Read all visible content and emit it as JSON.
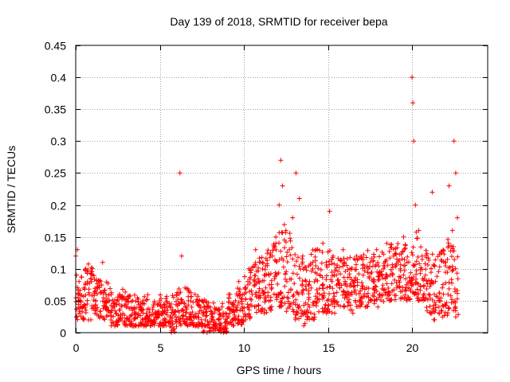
{
  "chart_data": {
    "type": "scatter",
    "title": "Day 139 of 2018, SRMTID for receiver bepa",
    "xlabel": "GPS time / hours",
    "ylabel": "SRMTID / TECUs",
    "xlim": [
      0,
      24.5
    ],
    "ylim": [
      0,
      0.45
    ],
    "xticks": [
      0,
      5,
      10,
      15,
      20
    ],
    "xtick_labels": [
      "0",
      "5",
      "10",
      "15",
      "20"
    ],
    "yticks": [
      0,
      0.05,
      0.1,
      0.15,
      0.2,
      0.25,
      0.3,
      0.35,
      0.4,
      0.45
    ],
    "ytick_labels": [
      "0",
      "0.05",
      "0.1",
      "0.15",
      "0.2",
      "0.25",
      "0.3",
      "0.35",
      "0.4",
      "0.45"
    ],
    "grid": true,
    "marker": "plus",
    "marker_color": "#ff0000",
    "series": [
      {
        "name": "SRMTID",
        "x": [
          0.0,
          0.05,
          0.1,
          0.15,
          0.2,
          0.3,
          0.4,
          0.5,
          0.6,
          0.8,
          1.0,
          1.2,
          1.4,
          1.6,
          1.8,
          2.0,
          2.2,
          2.4,
          2.6,
          2.8,
          3.0,
          3.2,
          3.4,
          3.6,
          3.8,
          4.0,
          4.2,
          4.4,
          4.6,
          4.8,
          5.0,
          5.2,
          5.4,
          5.6,
          5.8,
          6.0,
          6.2,
          6.3,
          6.5,
          6.7,
          6.9,
          7.1,
          7.3,
          7.5,
          7.7,
          7.9,
          8.1,
          8.3,
          8.5,
          8.7,
          8.9,
          9.1,
          9.3,
          9.5,
          9.7,
          9.9,
          10.1,
          10.3,
          10.5,
          10.7,
          10.9,
          11.1,
          11.3,
          11.5,
          11.7,
          11.9,
          12.1,
          12.2,
          12.3,
          12.5,
          12.7,
          12.9,
          13.1,
          13.3,
          13.5,
          13.7,
          13.9,
          14.1,
          14.3,
          14.5,
          14.7,
          14.9,
          15.1,
          15.3,
          15.5,
          15.7,
          15.9,
          16.1,
          16.3,
          16.5,
          16.7,
          16.9,
          17.1,
          17.3,
          17.5,
          17.7,
          17.9,
          18.1,
          18.3,
          18.5,
          18.7,
          18.9,
          19.1,
          19.3,
          19.5,
          19.7,
          19.9,
          20.0,
          20.05,
          20.1,
          20.2,
          20.4,
          20.6,
          20.8,
          21.0,
          21.2,
          21.4,
          21.6,
          21.8,
          22.0,
          22.2,
          22.4,
          22.5,
          22.6,
          22.7
        ],
        "y": [
          0.12,
          0.09,
          0.13,
          0.06,
          0.08,
          0.05,
          0.04,
          0.07,
          0.1,
          0.06,
          0.09,
          0.05,
          0.08,
          0.11,
          0.06,
          0.05,
          0.04,
          0.03,
          0.06,
          0.03,
          0.04,
          0.02,
          0.05,
          0.03,
          0.04,
          0.05,
          0.03,
          0.02,
          0.04,
          0.03,
          0.05,
          0.02,
          0.04,
          0.01,
          0.03,
          0.06,
          0.25,
          0.12,
          0.07,
          0.05,
          0.04,
          0.06,
          0.03,
          0.05,
          0.02,
          0.04,
          0.03,
          0.01,
          0.02,
          0.04,
          0.03,
          0.06,
          0.02,
          0.05,
          0.08,
          0.04,
          0.07,
          0.1,
          0.06,
          0.13,
          0.08,
          0.11,
          0.07,
          0.09,
          0.12,
          0.15,
          0.2,
          0.27,
          0.23,
          0.16,
          0.13,
          0.18,
          0.25,
          0.21,
          0.12,
          0.08,
          0.04,
          0.1,
          0.13,
          0.06,
          0.14,
          0.11,
          0.19,
          0.12,
          0.09,
          0.07,
          0.13,
          0.06,
          0.1,
          0.08,
          0.12,
          0.05,
          0.09,
          0.07,
          0.11,
          0.08,
          0.13,
          0.06,
          0.1,
          0.14,
          0.09,
          0.12,
          0.07,
          0.1,
          0.15,
          0.11,
          0.08,
          0.4,
          0.36,
          0.3,
          0.2,
          0.16,
          0.12,
          0.09,
          0.06,
          0.22,
          0.08,
          0.04,
          0.07,
          0.11,
          0.23,
          0.16,
          0.3,
          0.25,
          0.18
        ]
      }
    ],
    "density": {
      "step_hours": 0.25,
      "bands": [
        [
          0.02,
          0.1
        ],
        [
          0.02,
          0.09
        ],
        [
          0.03,
          0.1
        ],
        [
          0.02,
          0.11
        ],
        [
          0.03,
          0.09
        ],
        [
          0.02,
          0.09
        ],
        [
          0.02,
          0.08
        ],
        [
          0.02,
          0.08
        ],
        [
          0.01,
          0.07
        ],
        [
          0.01,
          0.06
        ],
        [
          0.01,
          0.06
        ],
        [
          0.01,
          0.07
        ],
        [
          0.01,
          0.06
        ],
        [
          0.01,
          0.06
        ],
        [
          0.01,
          0.06
        ],
        [
          0.01,
          0.05
        ],
        [
          0.01,
          0.06
        ],
        [
          0.01,
          0.06
        ],
        [
          0.01,
          0.05
        ],
        [
          0.01,
          0.05
        ],
        [
          0.01,
          0.06
        ],
        [
          0.01,
          0.06
        ],
        [
          0.0,
          0.05
        ],
        [
          0.0,
          0.06
        ],
        [
          0.01,
          0.07
        ],
        [
          0.01,
          0.07
        ],
        [
          0.01,
          0.07
        ],
        [
          0.01,
          0.07
        ],
        [
          0.01,
          0.06
        ],
        [
          0.01,
          0.06
        ],
        [
          0.0,
          0.06
        ],
        [
          0.0,
          0.05
        ],
        [
          0.0,
          0.05
        ],
        [
          0.0,
          0.04
        ],
        [
          0.0,
          0.05
        ],
        [
          0.0,
          0.04
        ],
        [
          0.01,
          0.06
        ],
        [
          0.01,
          0.05
        ],
        [
          0.01,
          0.07
        ],
        [
          0.01,
          0.07
        ],
        [
          0.02,
          0.09
        ],
        [
          0.02,
          0.1
        ],
        [
          0.03,
          0.11
        ],
        [
          0.03,
          0.12
        ],
        [
          0.03,
          0.12
        ],
        [
          0.03,
          0.13
        ],
        [
          0.03,
          0.14
        ],
        [
          0.03,
          0.14
        ],
        [
          0.04,
          0.16
        ],
        [
          0.04,
          0.17
        ],
        [
          0.03,
          0.16
        ],
        [
          0.03,
          0.15
        ],
        [
          0.02,
          0.14
        ],
        [
          0.01,
          0.12
        ],
        [
          0.01,
          0.11
        ],
        [
          0.02,
          0.12
        ],
        [
          0.02,
          0.13
        ],
        [
          0.03,
          0.14
        ],
        [
          0.03,
          0.14
        ],
        [
          0.03,
          0.12
        ],
        [
          0.03,
          0.13
        ],
        [
          0.03,
          0.12
        ],
        [
          0.04,
          0.12
        ],
        [
          0.04,
          0.12
        ],
        [
          0.04,
          0.12
        ],
        [
          0.03,
          0.12
        ],
        [
          0.04,
          0.12
        ],
        [
          0.04,
          0.13
        ],
        [
          0.04,
          0.13
        ],
        [
          0.04,
          0.13
        ],
        [
          0.05,
          0.13
        ],
        [
          0.04,
          0.13
        ],
        [
          0.05,
          0.13
        ],
        [
          0.04,
          0.13
        ],
        [
          0.05,
          0.14
        ],
        [
          0.05,
          0.14
        ],
        [
          0.05,
          0.14
        ],
        [
          0.05,
          0.13
        ],
        [
          0.05,
          0.14
        ],
        [
          0.05,
          0.13
        ],
        [
          0.06,
          0.16
        ],
        [
          0.05,
          0.15
        ],
        [
          0.05,
          0.14
        ],
        [
          0.03,
          0.13
        ],
        [
          0.03,
          0.13
        ],
        [
          0.02,
          0.13
        ],
        [
          0.02,
          0.14
        ],
        [
          0.02,
          0.14
        ],
        [
          0.02,
          0.15
        ],
        [
          0.02,
          0.14
        ],
        [
          0.02,
          0.13
        ]
      ]
    }
  }
}
